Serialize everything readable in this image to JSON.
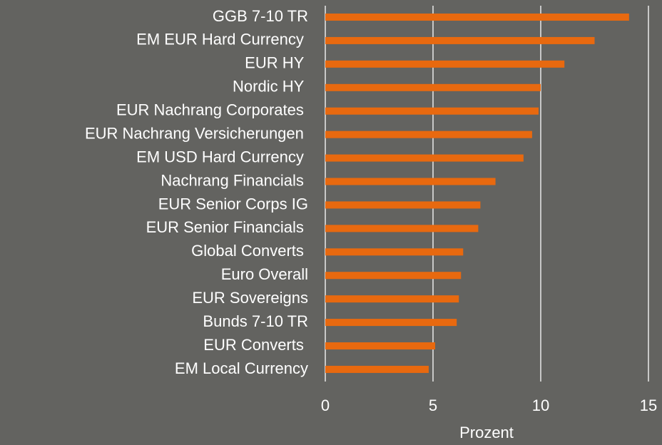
{
  "chart_data": {
    "type": "bar",
    "orientation": "horizontal",
    "categories": [
      "GGB 7-10 TR",
      "EM EUR Hard Currency ",
      "EUR HY ",
      "Nordic HY ",
      "EUR Nachrang Corporates ",
      "EUR Nachrang Versicherungen ",
      "EM USD Hard Currency ",
      "Nachrang Financials ",
      "EUR Senior Corps IG",
      "EUR Senior Financials ",
      "Global Converts ",
      "Euro Overall",
      "EUR Sovereigns",
      "Bunds 7-10 TR",
      "EUR Converts ",
      "EM Local Currency"
    ],
    "values": [
      14.1,
      12.5,
      11.1,
      10.0,
      9.9,
      9.6,
      9.2,
      7.9,
      7.2,
      7.1,
      6.4,
      6.3,
      6.2,
      6.1,
      5.1,
      4.8
    ],
    "color": "#e8690f",
    "xlabel": "Prozent",
    "xlim": [
      0,
      15.6
    ],
    "xticks": [
      0,
      5,
      10,
      15
    ],
    "grid": true
  }
}
